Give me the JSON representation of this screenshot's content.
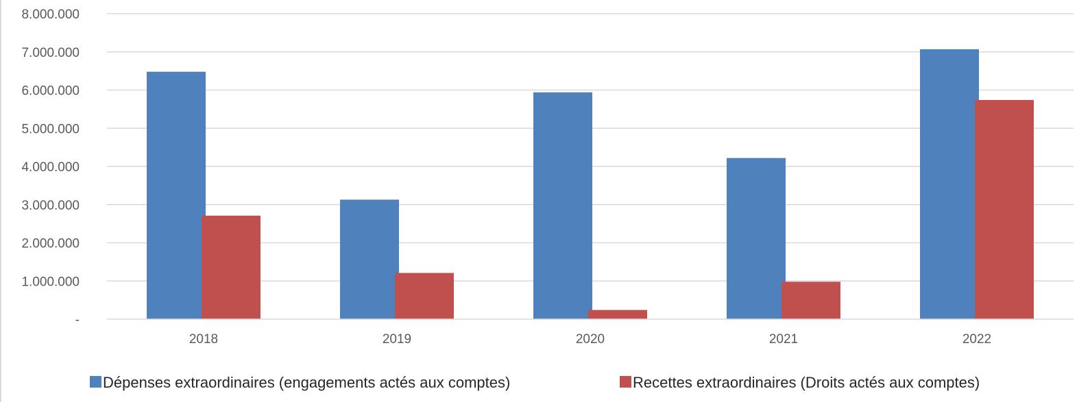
{
  "chart_data": {
    "type": "bar",
    "categories": [
      "2018",
      "2019",
      "2020",
      "2021",
      "2022"
    ],
    "series": [
      {
        "name": "Dépenses extraordinaires (engagements actés aux comptes)",
        "color": "#4f81bd",
        "values": [
          6480000,
          3130000,
          5940000,
          4220000,
          7070000
        ]
      },
      {
        "name": "Recettes extraordinaires (Droits actés aux comptes)",
        "color": "#c0504d",
        "values": [
          2710000,
          1210000,
          240000,
          980000,
          5740000
        ]
      }
    ],
    "ylim": [
      0,
      8000000
    ],
    "yticks": [
      0,
      1000000,
      2000000,
      3000000,
      4000000,
      5000000,
      6000000,
      7000000,
      8000000
    ],
    "ytick_labels": [
      "-",
      "1.000.000",
      "2.000.000",
      "3.000.000",
      "4.000.000",
      "5.000.000",
      "6.000.000",
      "7.000.000",
      "8.000.000"
    ],
    "grid": true,
    "legend_position": "bottom"
  }
}
